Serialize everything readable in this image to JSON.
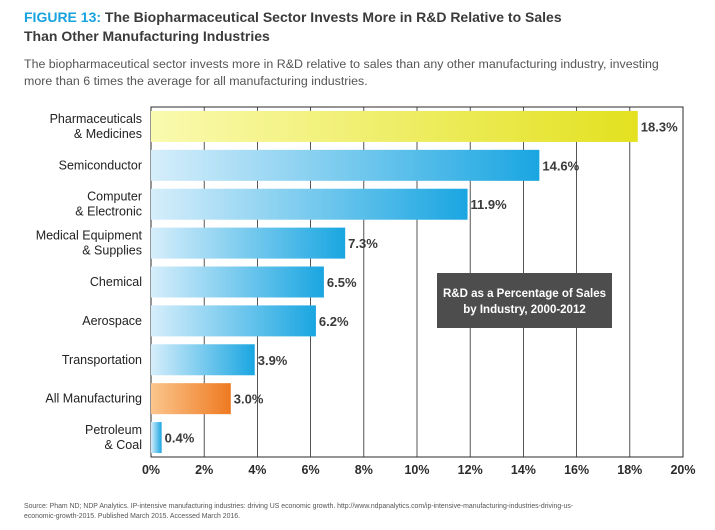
{
  "figure": {
    "label": "FIGURE 13:",
    "title_line1": "The Biopharmaceutical Sector Invests More in R&D Relative to Sales",
    "title_line2": "Than Other Manufacturing Industries",
    "subtitle_line1": "The biopharmaceutical sector invests more in R&D relative to sales than any other manufacturing industry, investing",
    "subtitle_line2": "more than 6 times the average for all manufacturing industries.",
    "source_line1": "Source: Pham ND; NDP Analytics. IP-intensive manufacturing industries: driving US economic growth. http://www.ndpanalytics.com/ip-intensive-manufacturing-industries-driving-us-",
    "source_line2": "economic-growth-2015. Published March 2015. Accessed March 2016."
  },
  "chart_data": {
    "type": "bar",
    "orientation": "horizontal",
    "categories": [
      [
        "Pharmaceuticals",
        "& Medicines"
      ],
      [
        "Semiconductor"
      ],
      [
        "Computer",
        "& Electronic"
      ],
      [
        "Medical Equipment",
        "& Supplies"
      ],
      [
        "Chemical"
      ],
      [
        "Aerospace"
      ],
      [
        "Transportation"
      ],
      [
        "All Manufacturing"
      ],
      [
        "Petroleum",
        "& Coal"
      ]
    ],
    "values": [
      18.3,
      14.6,
      11.9,
      7.3,
      6.5,
      6.2,
      3.9,
      3.0,
      0.4
    ],
    "value_labels": [
      "18.3%",
      "14.6%",
      "11.9%",
      "7.3%",
      "6.5%",
      "6.2%",
      "3.9%",
      "3.0%",
      "0.4%"
    ],
    "highlight": [
      "yellow",
      "blue",
      "blue",
      "blue",
      "blue",
      "blue",
      "blue",
      "orange",
      "blue"
    ],
    "xlim": [
      0,
      20
    ],
    "xticks": [
      0,
      2,
      4,
      6,
      8,
      10,
      12,
      14,
      16,
      18,
      20
    ],
    "xtick_labels": [
      "0%",
      "2%",
      "4%",
      "6%",
      "8%",
      "10%",
      "12%",
      "14%",
      "16%",
      "18%",
      "20%"
    ],
    "grid": true,
    "annotation_line1": "R&D as a Percentage of Sales",
    "annotation_line2": "by Industry, 2000-2012",
    "colors": {
      "blue_light": "#d6eefb",
      "blue_dark": "#1aa6e1",
      "yellow_light": "#fafab0",
      "yellow_dark": "#e3e11f",
      "orange_light": "#fbc58c",
      "orange_dark": "#ee7a22",
      "annotation_bg": "#4d4d4d",
      "title_accent": "#17a3dd"
    }
  }
}
